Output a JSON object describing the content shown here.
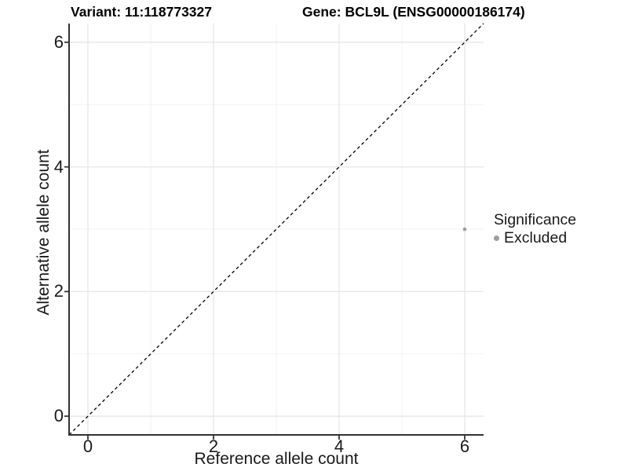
{
  "title": {
    "variant": "Variant: 11:118773327",
    "gene": "Gene: BCL9L (ENSG00000186174)"
  },
  "chart_data": {
    "type": "scatter",
    "title": "Variant: 11:118773327    Gene: BCL9L (ENSG00000186174)",
    "xlabel": "Reference allele count",
    "ylabel": "Alternative allele count",
    "xlim": [
      -0.3,
      6.3
    ],
    "ylim": [
      -0.3,
      6.3
    ],
    "x_ticks": [
      0,
      2,
      4,
      6
    ],
    "y_ticks": [
      0,
      2,
      4,
      6
    ],
    "x_minor_ticks": [
      1,
      3,
      5
    ],
    "y_minor_ticks": [
      1,
      3,
      5
    ],
    "grid": "major and minor, light gray on white",
    "reference_line": {
      "kind": "identity y=x",
      "style": "dashed",
      "color": "#000000"
    },
    "series": [
      {
        "name": "Excluded",
        "color": "#9d9d9d",
        "points": [
          {
            "x": 6,
            "y": 3
          }
        ]
      }
    ],
    "legend": {
      "position": "right",
      "title": "Significance",
      "items": [
        {
          "label": "Excluded",
          "color": "#9d9d9d"
        }
      ]
    }
  },
  "colors": {
    "background": "#ffffff",
    "axis_line": "#333333",
    "tick_text": "#1a1a1a",
    "grid_major": "#e6e6e6",
    "grid_minor": "#f2f2f2",
    "point": "#9d9d9d",
    "reference_line": "#000000"
  }
}
